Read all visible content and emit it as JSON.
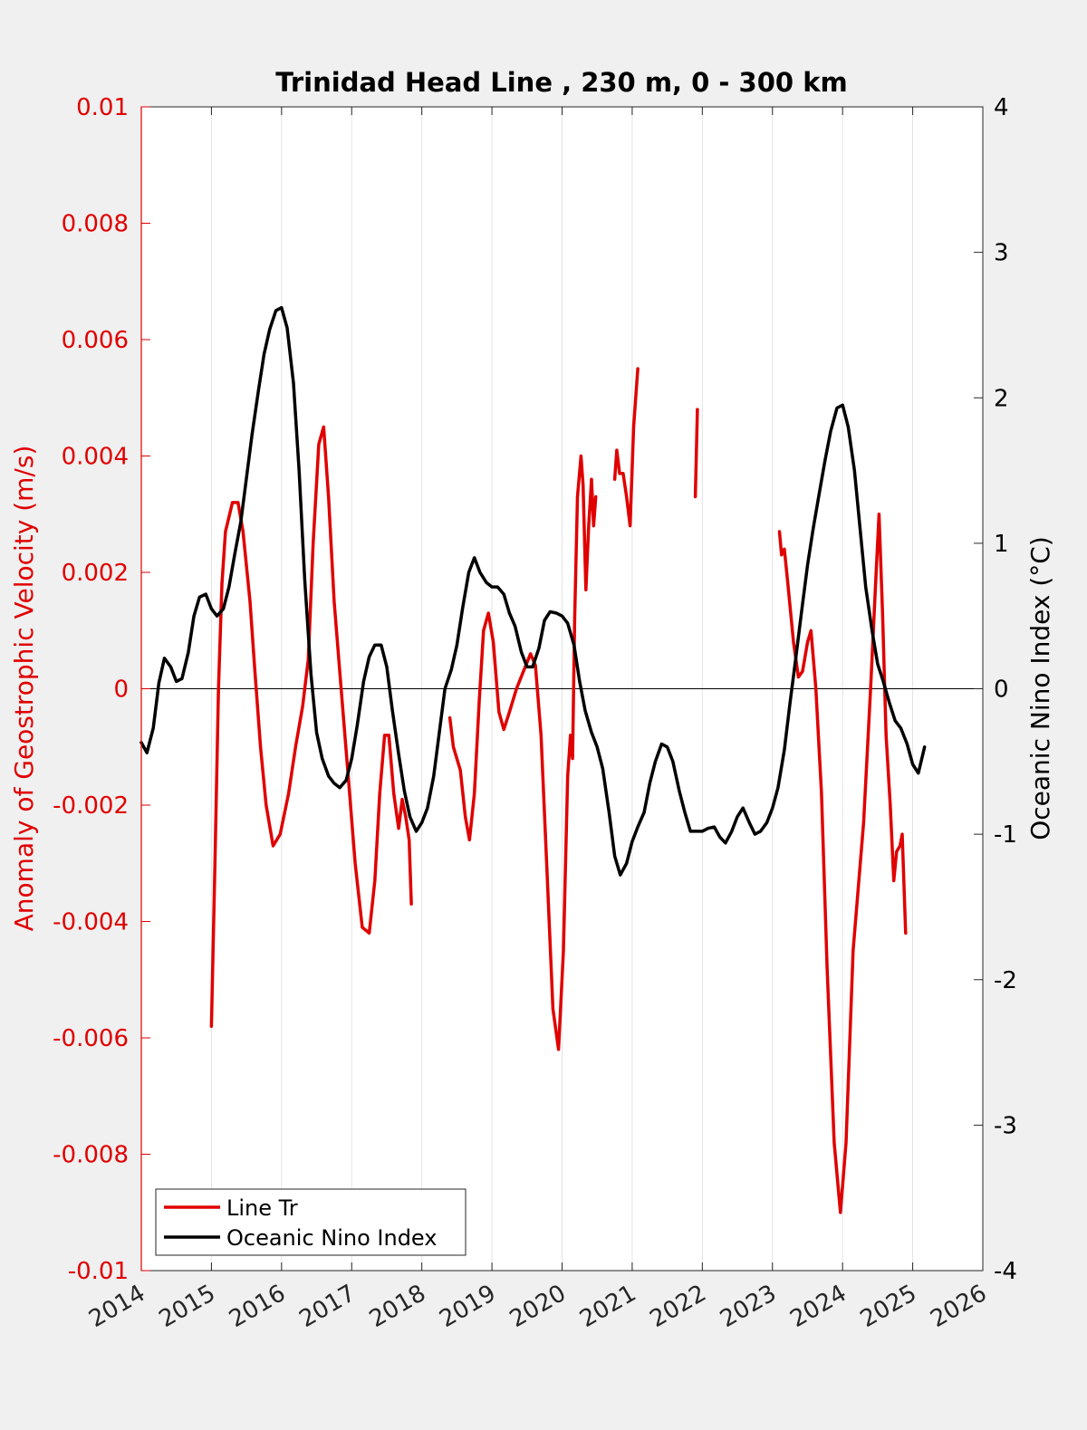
{
  "chart_data": {
    "type": "line",
    "title": "Trinidad Head Line , 230 m, 0 - 300 km",
    "xlabel": "",
    "ylabel_left": "Anomaly of Geostrophic Velocity (m/s)",
    "ylabel_right": "Oceanic Nino Index (°C)",
    "xlim": [
      2014,
      2026
    ],
    "ylim_left": [
      -0.01,
      0.01
    ],
    "ylim_right": [
      -4,
      4
    ],
    "x_ticks": [
      "2014",
      "2015",
      "2016",
      "2017",
      "2018",
      "2019",
      "2020",
      "2021",
      "2022",
      "2023",
      "2024",
      "2025",
      "2026"
    ],
    "y_left_ticks": [
      "0.01",
      "0.008",
      "0.006",
      "0.004",
      "0.002",
      "0",
      "-0.002",
      "-0.004",
      "-0.006",
      "-0.008",
      "-0.01"
    ],
    "y_right_ticks": [
      "4",
      "3",
      "2",
      "1",
      "0",
      "-1",
      "-2",
      "-3",
      "-4"
    ],
    "grid": "vertical",
    "zero_line": true,
    "legend_position": "bottom-left",
    "colors": {
      "line_tr": "#e00000",
      "oni": "#000000",
      "left_axis": "#e00000",
      "right_axis": "#000000"
    },
    "series": [
      {
        "name": "Line Tr",
        "axis": "left",
        "color": "#e00000",
        "segments": [
          [
            [
              2015.0,
              -0.0058
            ],
            [
              2015.05,
              -0.003
            ],
            [
              2015.1,
              0.0
            ],
            [
              2015.15,
              0.0018
            ],
            [
              2015.2,
              0.0027
            ],
            [
              2015.3,
              0.0032
            ],
            [
              2015.38,
              0.0032
            ],
            [
              2015.45,
              0.0027
            ],
            [
              2015.55,
              0.0015
            ],
            [
              2015.62,
              0.0003
            ],
            [
              2015.7,
              -0.001
            ],
            [
              2015.78,
              -0.002
            ],
            [
              2015.88,
              -0.0027
            ],
            [
              2015.98,
              -0.0025
            ],
            [
              2016.1,
              -0.0018
            ],
            [
              2016.2,
              -0.001
            ],
            [
              2016.3,
              -0.0003
            ],
            [
              2016.38,
              0.0005
            ],
            [
              2016.45,
              0.0025
            ],
            [
              2016.53,
              0.0042
            ],
            [
              2016.6,
              0.0045
            ],
            [
              2016.67,
              0.0033
            ],
            [
              2016.75,
              0.0015
            ],
            [
              2016.85,
              0.0
            ],
            [
              2016.95,
              -0.0015
            ],
            [
              2017.05,
              -0.003
            ],
            [
              2017.15,
              -0.0041
            ],
            [
              2017.25,
              -0.0042
            ],
            [
              2017.33,
              -0.0033
            ],
            [
              2017.4,
              -0.0018
            ],
            [
              2017.47,
              -0.0008
            ],
            [
              2017.53,
              -0.0008
            ],
            [
              2017.6,
              -0.0018
            ],
            [
              2017.67,
              -0.0024
            ],
            [
              2017.72,
              -0.0019
            ],
            [
              2017.77,
              -0.0022
            ],
            [
              2017.82,
              -0.0026
            ],
            [
              2017.85,
              -0.0037
            ]
          ],
          [
            [
              2018.4,
              -0.0005
            ],
            [
              2018.45,
              -0.001
            ],
            [
              2018.55,
              -0.0014
            ],
            [
              2018.62,
              -0.0022
            ],
            [
              2018.68,
              -0.0026
            ],
            [
              2018.75,
              -0.0018
            ],
            [
              2018.82,
              -0.0002
            ],
            [
              2018.88,
              0.001
            ],
            [
              2018.95,
              0.0013
            ],
            [
              2019.02,
              0.0008
            ],
            [
              2019.1,
              -0.0004
            ],
            [
              2019.17,
              -0.0007
            ],
            [
              2019.25,
              -0.0004
            ],
            [
              2019.35,
              0.0
            ],
            [
              2019.45,
              0.0003
            ],
            [
              2019.55,
              0.0006
            ],
            [
              2019.62,
              0.0004
            ],
            [
              2019.7,
              -0.0008
            ],
            [
              2019.78,
              -0.003
            ],
            [
              2019.87,
              -0.0055
            ],
            [
              2019.95,
              -0.0062
            ],
            [
              2020.02,
              -0.0045
            ],
            [
              2020.08,
              -0.0015
            ],
            [
              2020.12,
              -0.0008
            ],
            [
              2020.15,
              -0.0012
            ],
            [
              2020.18,
              0.0012
            ],
            [
              2020.22,
              0.0033
            ],
            [
              2020.27,
              0.004
            ],
            [
              2020.3,
              0.0035
            ],
            [
              2020.34,
              0.0017
            ],
            [
              2020.38,
              0.0028
            ],
            [
              2020.42,
              0.0036
            ],
            [
              2020.45,
              0.0028
            ],
            [
              2020.48,
              0.0033
            ]
          ],
          [
            [
              2020.75,
              0.0036
            ],
            [
              2020.78,
              0.0041
            ],
            [
              2020.82,
              0.0037
            ],
            [
              2020.87,
              0.0037
            ],
            [
              2020.92,
              0.0033
            ],
            [
              2020.97,
              0.0028
            ],
            [
              2021.02,
              0.0045
            ],
            [
              2021.08,
              0.0055
            ]
          ],
          [
            [
              2021.9,
              0.0033
            ],
            [
              2021.93,
              0.0048
            ]
          ],
          [
            [
              2023.1,
              0.0027
            ],
            [
              2023.13,
              0.0023
            ],
            [
              2023.17,
              0.0024
            ],
            [
              2023.22,
              0.0018
            ],
            [
              2023.3,
              0.0008
            ],
            [
              2023.37,
              0.0002
            ],
            [
              2023.43,
              0.0003
            ],
            [
              2023.5,
              0.0008
            ],
            [
              2023.55,
              0.001
            ],
            [
              2023.62,
              0.0
            ],
            [
              2023.7,
              -0.0018
            ],
            [
              2023.78,
              -0.0048
            ],
            [
              2023.88,
              -0.0078
            ],
            [
              2023.97,
              -0.009
            ],
            [
              2024.05,
              -0.0078
            ],
            [
              2024.15,
              -0.0045
            ],
            [
              2024.3,
              -0.0023
            ],
            [
              2024.4,
              0.0
            ],
            [
              2024.47,
              0.0018
            ],
            [
              2024.52,
              0.003
            ],
            [
              2024.57,
              0.0013
            ],
            [
              2024.62,
              -0.0008
            ],
            [
              2024.68,
              -0.002
            ],
            [
              2024.73,
              -0.0033
            ],
            [
              2024.77,
              -0.0028
            ],
            [
              2024.82,
              -0.0027
            ],
            [
              2024.85,
              -0.0025
            ],
            [
              2024.9,
              -0.0042
            ]
          ]
        ]
      },
      {
        "name": "Oceanic Nino Index",
        "axis": "right",
        "color": "#000000",
        "segments": [
          [
            [
              2014.0,
              -0.37
            ],
            [
              2014.08,
              -0.44
            ],
            [
              2014.17,
              -0.27
            ],
            [
              2014.25,
              0.04
            ],
            [
              2014.33,
              0.21
            ],
            [
              2014.42,
              0.15
            ],
            [
              2014.5,
              0.05
            ],
            [
              2014.58,
              0.07
            ],
            [
              2014.67,
              0.25
            ],
            [
              2014.75,
              0.5
            ],
            [
              2014.83,
              0.63
            ],
            [
              2014.92,
              0.65
            ],
            [
              2015.0,
              0.55
            ],
            [
              2015.08,
              0.5
            ],
            [
              2015.17,
              0.55
            ],
            [
              2015.25,
              0.7
            ],
            [
              2015.33,
              0.92
            ],
            [
              2015.42,
              1.15
            ],
            [
              2015.5,
              1.45
            ],
            [
              2015.58,
              1.75
            ],
            [
              2015.67,
              2.05
            ],
            [
              2015.75,
              2.3
            ],
            [
              2015.83,
              2.47
            ],
            [
              2015.92,
              2.6
            ],
            [
              2016.0,
              2.62
            ],
            [
              2016.08,
              2.48
            ],
            [
              2016.17,
              2.1
            ],
            [
              2016.25,
              1.5
            ],
            [
              2016.33,
              0.75
            ],
            [
              2016.42,
              0.1
            ],
            [
              2016.5,
              -0.3
            ],
            [
              2016.58,
              -0.48
            ],
            [
              2016.67,
              -0.6
            ],
            [
              2016.75,
              -0.65
            ],
            [
              2016.83,
              -0.68
            ],
            [
              2016.92,
              -0.63
            ],
            [
              2017.0,
              -0.48
            ],
            [
              2017.08,
              -0.25
            ],
            [
              2017.17,
              0.05
            ],
            [
              2017.25,
              0.22
            ],
            [
              2017.33,
              0.3
            ],
            [
              2017.42,
              0.3
            ],
            [
              2017.5,
              0.15
            ],
            [
              2017.58,
              -0.15
            ],
            [
              2017.67,
              -0.45
            ],
            [
              2017.75,
              -0.7
            ],
            [
              2017.83,
              -0.88
            ],
            [
              2017.92,
              -0.98
            ],
            [
              2018.0,
              -0.92
            ],
            [
              2018.08,
              -0.82
            ],
            [
              2018.17,
              -0.6
            ],
            [
              2018.25,
              -0.3
            ],
            [
              2018.33,
              0.0
            ],
            [
              2018.42,
              0.13
            ],
            [
              2018.5,
              0.3
            ],
            [
              2018.58,
              0.55
            ],
            [
              2018.67,
              0.8
            ],
            [
              2018.75,
              0.9
            ],
            [
              2018.83,
              0.8
            ],
            [
              2018.92,
              0.73
            ],
            [
              2019.0,
              0.7
            ],
            [
              2019.08,
              0.7
            ],
            [
              2019.17,
              0.65
            ],
            [
              2019.25,
              0.52
            ],
            [
              2019.33,
              0.43
            ],
            [
              2019.42,
              0.25
            ],
            [
              2019.5,
              0.15
            ],
            [
              2019.58,
              0.15
            ],
            [
              2019.67,
              0.28
            ],
            [
              2019.75,
              0.47
            ],
            [
              2019.83,
              0.53
            ],
            [
              2019.92,
              0.52
            ],
            [
              2020.0,
              0.5
            ],
            [
              2020.08,
              0.45
            ],
            [
              2020.17,
              0.3
            ],
            [
              2020.25,
              0.05
            ],
            [
              2020.33,
              -0.15
            ],
            [
              2020.42,
              -0.3
            ],
            [
              2020.5,
              -0.4
            ],
            [
              2020.58,
              -0.55
            ],
            [
              2020.67,
              -0.85
            ],
            [
              2020.75,
              -1.15
            ],
            [
              2020.83,
              -1.28
            ],
            [
              2020.92,
              -1.2
            ],
            [
              2021.0,
              -1.05
            ],
            [
              2021.08,
              -0.95
            ],
            [
              2021.17,
              -0.85
            ],
            [
              2021.25,
              -0.65
            ],
            [
              2021.33,
              -0.5
            ],
            [
              2021.42,
              -0.38
            ],
            [
              2021.5,
              -0.4
            ],
            [
              2021.58,
              -0.5
            ],
            [
              2021.67,
              -0.7
            ],
            [
              2021.75,
              -0.85
            ],
            [
              2021.83,
              -0.98
            ],
            [
              2021.92,
              -0.98
            ],
            [
              2022.0,
              -0.98
            ],
            [
              2022.08,
              -0.96
            ],
            [
              2022.17,
              -0.95
            ],
            [
              2022.25,
              -1.02
            ],
            [
              2022.33,
              -1.06
            ],
            [
              2022.42,
              -0.98
            ],
            [
              2022.5,
              -0.88
            ],
            [
              2022.58,
              -0.82
            ],
            [
              2022.67,
              -0.92
            ],
            [
              2022.75,
              -1.0
            ],
            [
              2022.83,
              -0.98
            ],
            [
              2022.92,
              -0.92
            ],
            [
              2023.0,
              -0.82
            ],
            [
              2023.08,
              -0.68
            ],
            [
              2023.17,
              -0.42
            ],
            [
              2023.25,
              -0.1
            ],
            [
              2023.33,
              0.2
            ],
            [
              2023.42,
              0.55
            ],
            [
              2023.5,
              0.85
            ],
            [
              2023.58,
              1.1
            ],
            [
              2023.67,
              1.35
            ],
            [
              2023.75,
              1.57
            ],
            [
              2023.83,
              1.77
            ],
            [
              2023.92,
              1.93
            ],
            [
              2024.0,
              1.95
            ],
            [
              2024.08,
              1.8
            ],
            [
              2024.17,
              1.5
            ],
            [
              2024.25,
              1.1
            ],
            [
              2024.33,
              0.7
            ],
            [
              2024.42,
              0.4
            ],
            [
              2024.5,
              0.17
            ],
            [
              2024.58,
              0.05
            ],
            [
              2024.67,
              -0.1
            ],
            [
              2024.75,
              -0.22
            ],
            [
              2024.83,
              -0.27
            ],
            [
              2024.92,
              -0.38
            ],
            [
              2025.0,
              -0.52
            ],
            [
              2025.08,
              -0.58
            ],
            [
              2025.17,
              -0.4
            ]
          ]
        ]
      }
    ]
  }
}
